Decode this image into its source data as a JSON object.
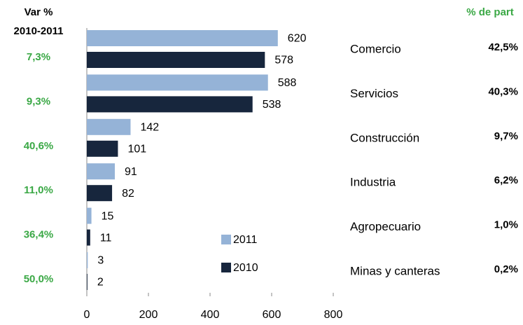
{
  "chart_data": {
    "type": "bar",
    "orientation": "horizontal",
    "left_header": [
      "Var %",
      "2010-2011"
    ],
    "right_header": "% de part",
    "categories": [
      "Comercio",
      "Servicios",
      "Construcción",
      "Industria",
      "Agropecuario",
      "Minas y canteras"
    ],
    "series": [
      {
        "name": "2011",
        "color": "#95b3d7",
        "values": [
          620,
          588,
          142,
          91,
          15,
          3
        ]
      },
      {
        "name": "2010",
        "color": "#17263d",
        "values": [
          578,
          538,
          101,
          82,
          11,
          2
        ]
      }
    ],
    "variation": [
      "7,3%",
      "9,3%",
      "40,6%",
      "11,0%",
      "36,4%",
      "50,0%"
    ],
    "share": [
      "42,5%",
      "40,3%",
      "9,7%",
      "6,2%",
      "1,0%",
      "0,2%"
    ],
    "xlim": [
      0,
      800
    ],
    "xticks": [
      0,
      200,
      400,
      600,
      800
    ],
    "grid": false
  }
}
